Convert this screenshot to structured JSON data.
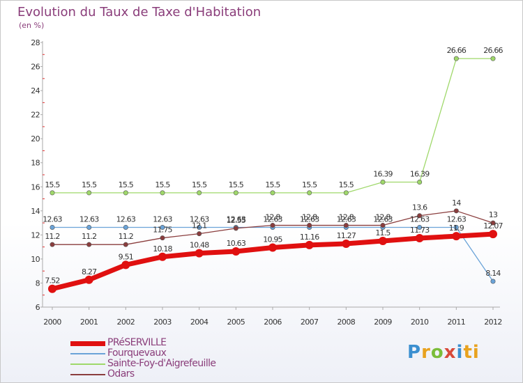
{
  "title": "Evolution du Taux de Taxe d'Habitation",
  "unit": "(en %)",
  "logo": {
    "text": "Proxiti",
    "letters": [
      "P",
      "r",
      "o",
      "x",
      "i",
      "ti"
    ]
  },
  "chart_data": {
    "type": "line",
    "x": [
      "2000",
      "2001",
      "2002",
      "2003",
      "2004",
      "2005",
      "2006",
      "2007",
      "2008",
      "2009",
      "2010",
      "2011",
      "2012"
    ],
    "ylim": [
      6,
      28
    ],
    "yticks": [
      6,
      8,
      10,
      12,
      14,
      16,
      18,
      20,
      22,
      24,
      26,
      28
    ],
    "grid": false,
    "legend_position": "bottom-left",
    "series": [
      {
        "name": "PRéSERVILLE",
        "color": "#e01010",
        "width": 7,
        "values": [
          7.52,
          8.27,
          9.51,
          10.18,
          10.48,
          10.63,
          10.95,
          11.16,
          11.27,
          11.5,
          11.73,
          11.9,
          12.07
        ],
        "labels": [
          "7.52",
          "8.27",
          "9.51",
          "10.18",
          "10.48",
          "10.63",
          "10.95",
          "11.16",
          "11.27",
          "11.5",
          "11.73",
          "11.9",
          "12.07"
        ]
      },
      {
        "name": "Fourquevaux",
        "color": "#6aa3d8",
        "width": 1.3,
        "values": [
          12.63,
          12.63,
          12.63,
          12.63,
          12.63,
          12.63,
          12.63,
          12.63,
          12.63,
          12.63,
          12.63,
          12.63,
          8.14
        ],
        "labels": [
          "12.63",
          "12.63",
          "12.63",
          "12.63",
          "12.63",
          "12.63",
          "12.63",
          "12.63",
          "12.63",
          "12.63",
          "12.63",
          "12.63",
          "8.14"
        ]
      },
      {
        "name": "Sainte-Foy-d'Aigrefeuille",
        "color": "#9fd86a",
        "width": 1.3,
        "values": [
          15.5,
          15.5,
          15.5,
          15.5,
          15.5,
          15.5,
          15.5,
          15.5,
          15.5,
          16.39,
          16.39,
          26.66,
          26.66
        ],
        "labels": [
          "15.5",
          "15.5",
          "15.5",
          "15.5",
          "15.5",
          "15.5",
          "15.5",
          "15.5",
          "15.5",
          "16.39",
          "16.39",
          "26.66",
          "26.66"
        ]
      },
      {
        "name": "Odars",
        "color": "#8a3d3d",
        "width": 1.3,
        "values": [
          11.2,
          11.2,
          11.2,
          11.75,
          12.1,
          12.55,
          12.8,
          12.8,
          12.8,
          12.8,
          13.6,
          14,
          13
        ],
        "labels": [
          "11.2",
          "11.2",
          "11.2",
          "11.75",
          "12.1",
          "12.55",
          "12.8",
          "12.8",
          "12.8",
          "12.8",
          "13.6",
          "14",
          "13"
        ]
      }
    ]
  }
}
